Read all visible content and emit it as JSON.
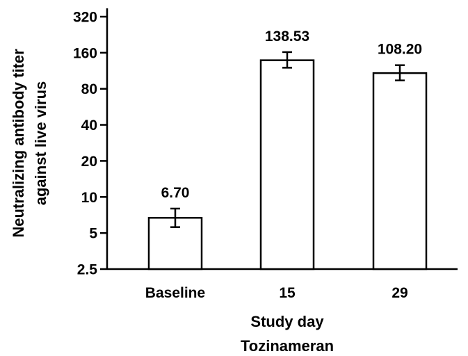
{
  "chart_data": {
    "type": "bar",
    "categories": [
      "Baseline",
      "15",
      "29"
    ],
    "values": [
      6.7,
      138.53,
      108.2
    ],
    "data_labels": [
      "6.70",
      "138.53",
      "108.20"
    ],
    "error_bars": {
      "lower": [
        5.6,
        120,
        94
      ],
      "upper": [
        8.0,
        162,
        126
      ]
    },
    "title": "",
    "xlabel": "Study day",
    "xlabel_2": "Tozinameran",
    "ylabel": [
      "Neutralizing antibody titer",
      "against live virus"
    ],
    "y_scale": "log2",
    "ylim": [
      2.5,
      320
    ],
    "yticks": [
      2.5,
      5,
      10,
      20,
      40,
      80,
      160,
      320
    ],
    "ytick_labels": [
      "2.5",
      "5",
      "10",
      "20",
      "40",
      "80",
      "160",
      "320"
    ],
    "grid": false,
    "legend": "none",
    "colors": {
      "bar_fill": "#ffffff",
      "bar_stroke": "#000000",
      "axis": "#000000"
    }
  }
}
